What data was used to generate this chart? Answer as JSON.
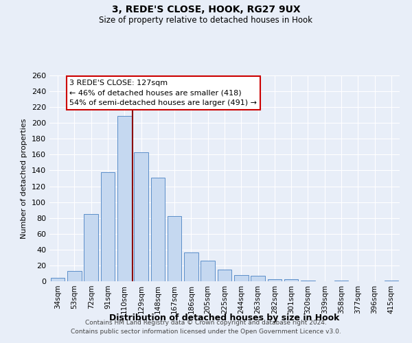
{
  "title": "3, REDE'S CLOSE, HOOK, RG27 9UX",
  "subtitle": "Size of property relative to detached houses in Hook",
  "xlabel": "Distribution of detached houses by size in Hook",
  "ylabel": "Number of detached properties",
  "footer_line1": "Contains HM Land Registry data © Crown copyright and database right 2024.",
  "footer_line2": "Contains public sector information licensed under the Open Government Licence v3.0.",
  "bar_labels": [
    "34sqm",
    "53sqm",
    "72sqm",
    "91sqm",
    "110sqm",
    "129sqm",
    "148sqm",
    "167sqm",
    "186sqm",
    "205sqm",
    "225sqm",
    "244sqm",
    "263sqm",
    "282sqm",
    "301sqm",
    "320sqm",
    "339sqm",
    "358sqm",
    "377sqm",
    "396sqm",
    "415sqm"
  ],
  "bar_values": [
    4,
    13,
    85,
    138,
    209,
    163,
    131,
    82,
    36,
    26,
    15,
    8,
    7,
    3,
    3,
    1,
    0,
    1,
    0,
    0,
    1
  ],
  "bar_color": "#c5d8f0",
  "bar_edge_color": "#5b8ec9",
  "ylim": [
    0,
    260
  ],
  "yticks": [
    0,
    20,
    40,
    60,
    80,
    100,
    120,
    140,
    160,
    180,
    200,
    220,
    240,
    260
  ],
  "vline_idx": 5,
  "vline_color": "#8b0000",
  "annotation_title": "3 REDE'S CLOSE: 127sqm",
  "annotation_line1": "← 46% of detached houses are smaller (418)",
  "annotation_line2": "54% of semi-detached houses are larger (491) →",
  "annotation_box_color": "#ffffff",
  "annotation_box_edge": "#cc0000",
  "background_color": "#e8eef8"
}
